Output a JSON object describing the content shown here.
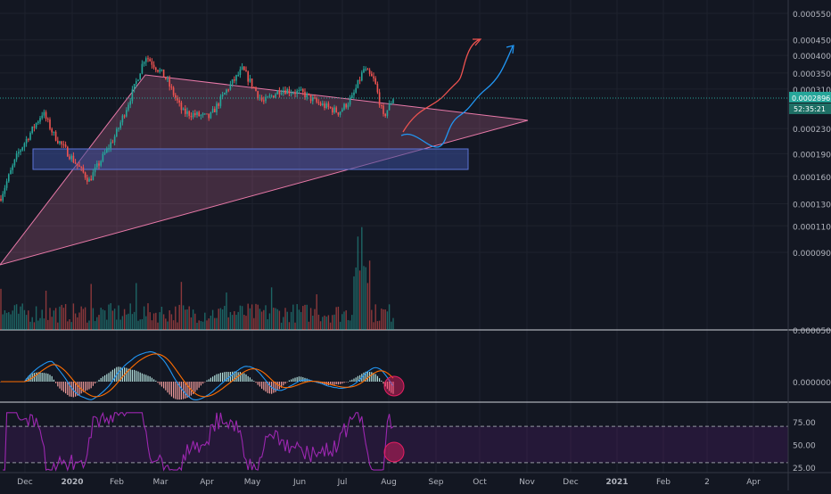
{
  "chart_data": {
    "type": "candlestick",
    "title": "",
    "price_axis": {
      "scale": "log",
      "range": [
        5e-05,
        0.00055
      ],
      "ticks": [
        {
          "v": 0.00055,
          "label": "0.0005500"
        },
        {
          "v": 0.00045,
          "label": "0.0004500"
        },
        {
          "v": 0.0004,
          "label": "0.0004000"
        },
        {
          "v": 0.00035,
          "label": "0.0003500"
        },
        {
          "v": 0.00031,
          "label": "0.0003100"
        },
        {
          "v": 0.00023,
          "label": "0.0002300"
        },
        {
          "v": 0.00019,
          "label": "0.0001900"
        },
        {
          "v": 0.00016,
          "label": "0.0001600"
        },
        {
          "v": 0.00013,
          "label": "0.0001300"
        },
        {
          "v": 0.00011,
          "label": "0.0001100"
        },
        {
          "v": 9e-05,
          "label": "0.0000900"
        },
        {
          "v": 5e-05,
          "label": "0.0000500"
        }
      ],
      "last_price": {
        "v": 0.0002896,
        "label": "0.0002896"
      },
      "countdown": "52:35:21"
    },
    "time_axis": {
      "labels": [
        "Dec",
        "2020",
        "Feb",
        "Mar",
        "Apr",
        "May",
        "Jun",
        "Jul",
        "Aug",
        "Sep",
        "Oct",
        "Nov",
        "Dec",
        "2021",
        "Feb",
        "2",
        "Apr"
      ],
      "bold": [
        "2020",
        "2021"
      ]
    },
    "drawings": {
      "triangle": {
        "apex_left": [
          "Feb 20",
          0.0004
        ],
        "apex_right": [
          "Nov 1",
          0.00031
        ],
        "base_left": [
          "Nov 20",
          0.00013
        ]
      },
      "support_zone": {
        "top": 0.00026,
        "bottom": 0.00024,
        "from": "Nov 25",
        "to": "Oct 2"
      },
      "projection_red": "bullish path toward 0.00048 by Oct",
      "projection_blue": "bullish path toward 0.00046 by Oct-end"
    },
    "macd": {
      "zero_label": "0.0000000",
      "colors": {
        "macd": "#2196f3",
        "signal": "#ff6d00"
      }
    },
    "rsi": {
      "ticks": [
        {
          "v": 75,
          "label": "75.00"
        },
        {
          "v": 50,
          "label": "50.00"
        },
        {
          "v": 25,
          "label": "25.00"
        }
      ],
      "upper": 70,
      "lower": 30,
      "line_color": "#9c27b0"
    },
    "colors": {
      "up": "#26a69a",
      "down": "#ef5350",
      "triangle": "#e879a8",
      "zone": "#3b4f9a",
      "price_label": "#26a69a"
    }
  }
}
